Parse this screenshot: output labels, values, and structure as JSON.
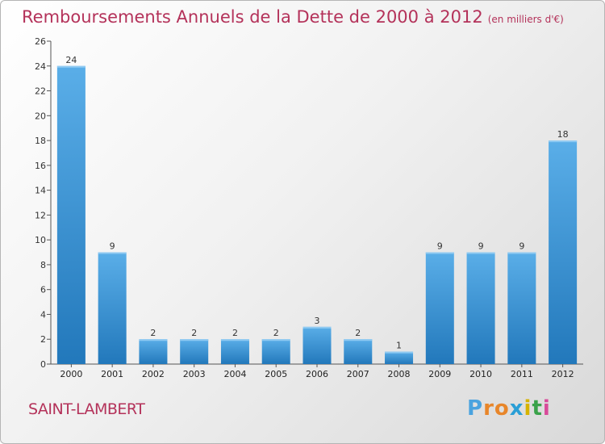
{
  "title": "Remboursements Annuels de la Dette de 2000 à 2012",
  "subtitle": "(en milliers d'€)",
  "commune": "SAINT-LAMBERT",
  "logo_text": "Proxiti",
  "colors": {
    "title": "#b4325a",
    "bar_light": "#5aaee8",
    "bar_dark": "#2278bb"
  },
  "chart_data": {
    "type": "bar",
    "title": "Remboursements Annuels de la Dette de 2000 à 2012",
    "subtitle": "(en milliers d'€)",
    "categories": [
      "2000",
      "2001",
      "2002",
      "2003",
      "2004",
      "2005",
      "2006",
      "2007",
      "2008",
      "2009",
      "2010",
      "2011",
      "2012"
    ],
    "values": [
      24,
      9,
      2,
      2,
      2,
      2,
      3,
      2,
      1,
      9,
      9,
      9,
      18
    ],
    "ylim": [
      0,
      26
    ],
    "yticks": [
      0,
      2,
      4,
      6,
      8,
      10,
      12,
      14,
      16,
      18,
      20,
      22,
      24,
      26
    ],
    "grid": false
  }
}
